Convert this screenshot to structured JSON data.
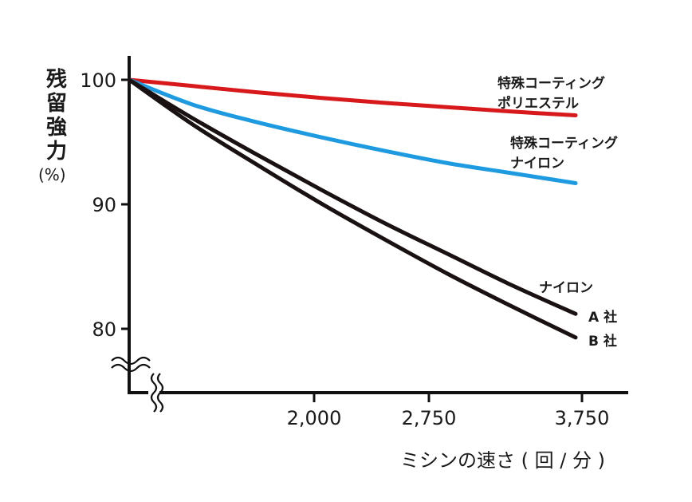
{
  "chart_data": {
    "type": "line",
    "ylabel": [
      "残",
      "留",
      "強",
      "力"
    ],
    "ylabel_unit": "(%)",
    "xlabel": "ミシンの速さ ( 回 / 分 )",
    "x_ticks": [
      "2,000",
      "2,750",
      "3,750"
    ],
    "y_ticks": [
      "100",
      "90",
      "80"
    ],
    "ylim": [
      75,
      102
    ],
    "x_axis_break": true,
    "y_axis_break": true,
    "grid": false,
    "legend": "labels-at-line-ends",
    "series": [
      {
        "name_lines": [
          "特殊コーティング",
          "ポリエステル"
        ],
        "color": "#d7191c",
        "points": [
          [
            0,
            100
          ],
          [
            1,
            99.5
          ],
          [
            2,
            99.0
          ],
          [
            3,
            98.55
          ],
          [
            4,
            98.15
          ],
          [
            5,
            97.8
          ],
          [
            6,
            97.45
          ],
          [
            7,
            97.15
          ]
        ]
      },
      {
        "name_lines": [
          "特殊コーティング",
          "ナイロン"
        ],
        "color": "#1e9be0",
        "points": [
          [
            0,
            100
          ],
          [
            1,
            98.0
          ],
          [
            2,
            96.6
          ],
          [
            3,
            95.4
          ],
          [
            4,
            94.3
          ],
          [
            5,
            93.3
          ],
          [
            6,
            92.5
          ],
          [
            7,
            91.7
          ]
        ]
      },
      {
        "name_lines": [
          "ナイロン",
          "A 社"
        ],
        "color": "#1a1212",
        "points": [
          [
            0,
            100
          ],
          [
            1,
            96.9
          ],
          [
            2,
            94.0
          ],
          [
            3,
            91.2
          ],
          [
            4,
            88.5
          ],
          [
            5,
            86.0
          ],
          [
            6,
            83.5
          ],
          [
            7,
            81.2
          ]
        ]
      },
      {
        "name_lines": [
          "B 社"
        ],
        "color": "#1a1212",
        "points": [
          [
            0,
            100
          ],
          [
            1,
            96.4
          ],
          [
            2,
            93.2
          ],
          [
            3,
            90.1
          ],
          [
            4,
            87.2
          ],
          [
            5,
            84.4
          ],
          [
            6,
            81.8
          ],
          [
            7,
            79.3
          ]
        ]
      }
    ],
    "x_tick_positions": [
      2.9,
      4.7,
      7.1
    ]
  }
}
